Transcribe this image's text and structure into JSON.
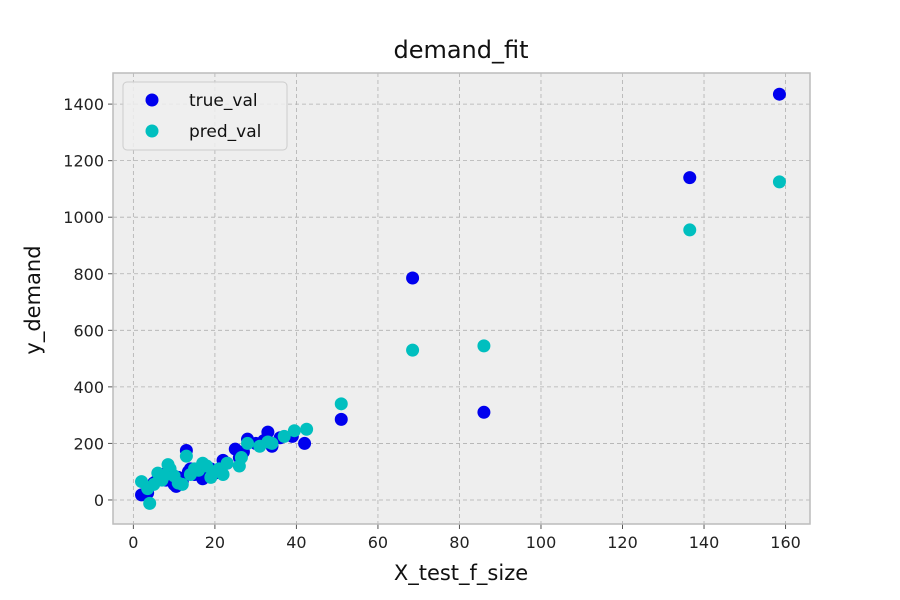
{
  "chart_data": {
    "type": "scatter",
    "title": "demand_fit",
    "xlabel": "X_test_f_size",
    "ylabel": "y_demand",
    "xlim": [
      -5,
      166
    ],
    "ylim": [
      -85,
      1510
    ],
    "xticks": [
      0,
      20,
      40,
      60,
      80,
      100,
      120,
      140,
      160
    ],
    "yticks": [
      0,
      200,
      400,
      600,
      800,
      1000,
      1200,
      1400
    ],
    "grid": true,
    "legend_position": "top-left",
    "series": [
      {
        "name": "true_val",
        "color": "#0000ee",
        "x": [
          2,
          3.5,
          5,
          6,
          7,
          8,
          9,
          10,
          10.5,
          11,
          12,
          13,
          13.5,
          14,
          15,
          17,
          18,
          19,
          20,
          22,
          23,
          25,
          26,
          27,
          28,
          30,
          32,
          33,
          34,
          36,
          39,
          42,
          51,
          68.5,
          86,
          136.5,
          158.5
        ],
        "y": [
          18,
          25,
          60,
          75,
          90,
          70,
          105,
          55,
          48,
          80,
          65,
          175,
          100,
          110,
          90,
          75,
          100,
          110,
          95,
          140,
          130,
          180,
          150,
          170,
          215,
          200,
          210,
          240,
          190,
          220,
          225,
          200,
          285,
          785,
          310,
          1140,
          1435
        ]
      },
      {
        "name": "pred_val",
        "color": "#00bfbf",
        "x": [
          2,
          3.5,
          4,
          5,
          6,
          7,
          8,
          8.5,
          9,
          10,
          11,
          12,
          13,
          14,
          15,
          16,
          17,
          18,
          19,
          20,
          21,
          22,
          23,
          26,
          26.5,
          28,
          31,
          33,
          34,
          37,
          39.5,
          42.5,
          51,
          68.5,
          86,
          136.5,
          158.5
        ],
        "y": [
          65,
          40,
          -12,
          55,
          95,
          70,
          90,
          125,
          110,
          85,
          60,
          55,
          155,
          90,
          110,
          105,
          130,
          120,
          80,
          100,
          110,
          90,
          130,
          120,
          150,
          200,
          190,
          205,
          200,
          225,
          245,
          250,
          340,
          530,
          545,
          955,
          1125
        ]
      }
    ]
  }
}
